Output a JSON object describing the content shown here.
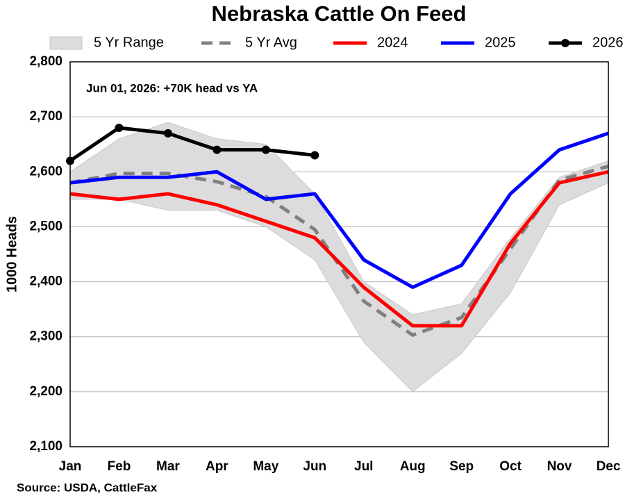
{
  "chart_data": {
    "type": "line",
    "title": "Nebraska Cattle On Feed",
    "y_label": "1000 Heads",
    "annotation": "Jun 01, 2026: +70K head vs YA",
    "source": "Source: USDA, CattleFax",
    "categories": [
      "Jan",
      "Feb",
      "Mar",
      "Apr",
      "May",
      "Jun",
      "Jul",
      "Aug",
      "Sep",
      "Oct",
      "Nov",
      "Dec"
    ],
    "series": [
      {
        "name": "5 Yr Range",
        "color": "#dcdcdc",
        "style": "band",
        "high": [
          2600,
          2660,
          2690,
          2660,
          2650,
          2560,
          2400,
          2340,
          2360,
          2480,
          2590,
          2620
        ],
        "low": [
          2550,
          2550,
          2530,
          2530,
          2500,
          2440,
          2290,
          2200,
          2270,
          2380,
          2540,
          2580
        ]
      },
      {
        "name": "5 Yr Avg",
        "color": "#808080",
        "style": "dashed",
        "values": [
          2580,
          2597,
          2597,
          2582,
          2555,
          2495,
          2365,
          2303,
          2335,
          2460,
          2585,
          2610
        ]
      },
      {
        "name": "2024",
        "color": "#ff0000",
        "style": "solid",
        "values": [
          2560,
          2550,
          2560,
          2540,
          2510,
          2480,
          2390,
          2320,
          2320,
          2470,
          2580,
          2600
        ]
      },
      {
        "name": "2025",
        "color": "#0000ff",
        "style": "solid",
        "values": [
          2580,
          2590,
          2590,
          2600,
          2550,
          2560,
          2440,
          2390,
          2430,
          2560,
          2640,
          2670
        ]
      },
      {
        "name": "2026",
        "color": "#000000",
        "style": "markers",
        "values": [
          2620,
          2680,
          2670,
          2640,
          2640,
          2630,
          null,
          null,
          null,
          null,
          null,
          null
        ]
      }
    ],
    "ylim": [
      2100,
      2800
    ],
    "yticks": [
      {
        "value": 2100,
        "label": "2,100"
      },
      {
        "value": 2200,
        "label": "2,200"
      },
      {
        "value": 2300,
        "label": "2,300"
      },
      {
        "value": 2400,
        "label": "2,400"
      },
      {
        "value": 2500,
        "label": "2,500"
      },
      {
        "value": 2600,
        "label": "2,600"
      },
      {
        "value": 2700,
        "label": "2,700"
      },
      {
        "value": 2800,
        "label": "2,800"
      }
    ],
    "grid": true
  }
}
